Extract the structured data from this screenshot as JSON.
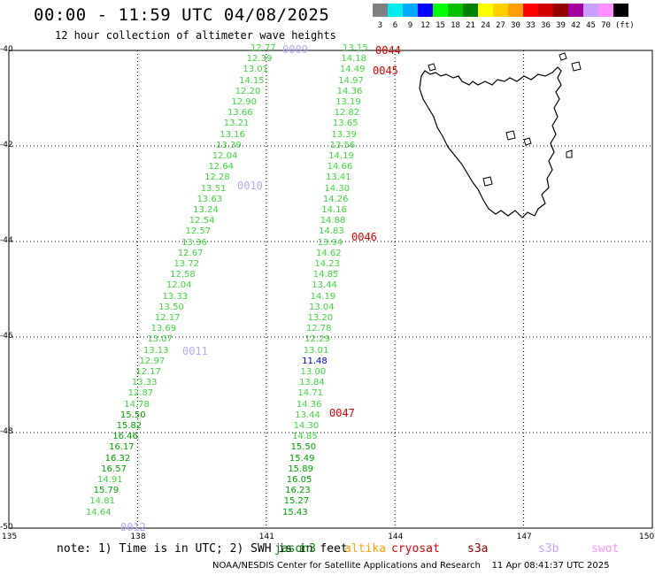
{
  "header": {
    "title": "00:00 - 11:59 UTC 04/08/2025",
    "subtitle": "12 hour collection of altimeter wave heights"
  },
  "color_scale": {
    "labels": [
      "3",
      "6",
      "9",
      "12",
      "15",
      "18",
      "21",
      "24",
      "27",
      "30",
      "33",
      "36",
      "39",
      "42",
      "45",
      "70",
      "(ft)"
    ],
    "colors": [
      "#808080",
      "#00eeee",
      "#00aaff",
      "#0000ff",
      "#00ff00",
      "#00c000",
      "#008000",
      "#ffff00",
      "#ffd000",
      "#ffa000",
      "#ff0000",
      "#d00000",
      "#900000",
      "#a000a0",
      "#c8a0ff",
      "#ff90ff",
      "#000000"
    ]
  },
  "axes": {
    "lat_labels": [
      "-40",
      "-42",
      "-44",
      "-46",
      "-48",
      "-50"
    ],
    "lon_labels": [
      "135",
      "138",
      "141",
      "144",
      "147",
      "150"
    ]
  },
  "passes": [
    {
      "label": "0009",
      "color": "#b8a8ff"
    },
    {
      "label": "0010",
      "color": "#b8a8ff"
    },
    {
      "label": "0011",
      "color": "#b8a8ff"
    },
    {
      "label": "0012",
      "color": "#b8a8ff"
    },
    {
      "label": "0044",
      "color": "#e00000"
    },
    {
      "label": "0045",
      "color": "#e00000"
    },
    {
      "label": "0046",
      "color": "#e00000"
    },
    {
      "label": "0047",
      "color": "#e00000"
    }
  ],
  "track_west": {
    "values": [
      "12.77",
      "12.39",
      "13.01",
      "14.15",
      "12.20",
      "12.90",
      "13.66",
      "13.21",
      "13.16",
      "13.39",
      "12.04",
      "12.64",
      "12.28",
      "13.51",
      "13.63",
      "13.24",
      "12.54",
      "12.57",
      "13.36",
      "12.67",
      "13.72",
      "12.58",
      "12.04",
      "13.33",
      "13.50",
      "12.17",
      "13.69",
      "13.07",
      "13.13",
      "12.97",
      "12.17",
      "13.33",
      "12.87",
      "14.78",
      "15.50",
      "15.82",
      "16.46",
      "16.17",
      "16.32",
      "16.57",
      "14.91",
      "15.79",
      "14.81",
      "14.64"
    ]
  },
  "track_east": {
    "values": [
      "13.15",
      "14.18",
      "14.49",
      "14.97",
      "14.36",
      "13.19",
      "12.82",
      "13.65",
      "13.39",
      "13.56",
      "14.19",
      "14.66",
      "13.41",
      "14.30",
      "14.26",
      "14.16",
      "14.88",
      "14.83",
      "13.94",
      "14.62",
      "14.23",
      "14.85",
      "13.44",
      "14.19",
      "13.04",
      "13.20",
      "12.78",
      "12.29",
      "13.01",
      "11.48",
      "13.00",
      "13.84",
      "14.71",
      "14.36",
      "13.44",
      "14.30",
      "14.85",
      "15.50",
      "15.49",
      "15.89",
      "16.05",
      "16.23",
      "15.27",
      "15.43"
    ]
  },
  "footer": {
    "note": "note: 1) Time is in UTC; 2) SWH is in feet",
    "missions": [
      {
        "name": "jason3",
        "color": "#008000"
      },
      {
        "name": "altika",
        "color": "#ffa000"
      },
      {
        "name": "cryosat",
        "color": "#e00000"
      },
      {
        "name": "s3a",
        "color": "#900000"
      },
      {
        "name": "s3b",
        "color": "#c8a0ff"
      },
      {
        "name": "swot",
        "color": "#ff90ff"
      }
    ],
    "credit": "NOAA/NESDIS Center for Satellite Applications and Research    11 Apr 08:41:37 UTC 2025"
  }
}
